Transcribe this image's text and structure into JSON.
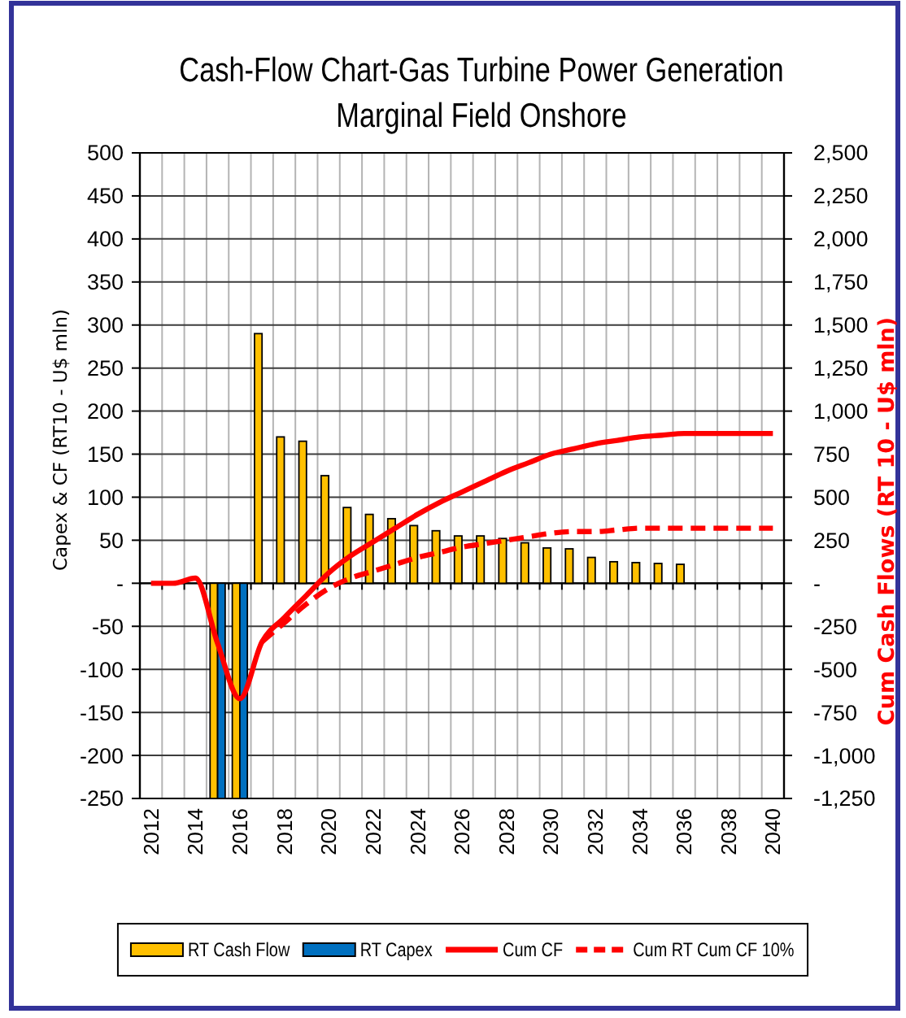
{
  "chart_data": {
    "type": "bar",
    "title": "Cash-Flow Chart-Gas Turbine Power Generation",
    "subtitle": "Marginal Field Onshore",
    "ylabel": "Capex & CF (RT10 - U$ mln)",
    "y2label": "Cum Cash Flows (RT 10 - U$ mln)",
    "categories": [
      "2012",
      null,
      "2014",
      null,
      "2016",
      null,
      "2018",
      null,
      "2020",
      null,
      "2022",
      null,
      "2024",
      null,
      "2026",
      null,
      "2028",
      null,
      "2030",
      null,
      "2032",
      null,
      "2034",
      null,
      "2036",
      null,
      "2038",
      null,
      "2040"
    ],
    "series": [
      {
        "name": "RT Cash Flow",
        "color": "#ffc000",
        "values": [
          null,
          null,
          null,
          -250,
          -250,
          290,
          170,
          165,
          125,
          88,
          80,
          75,
          67,
          61,
          55,
          55,
          52,
          47,
          41,
          40,
          30,
          25,
          24,
          23,
          22,
          null,
          null,
          null,
          null
        ]
      },
      {
        "name": "RT Capex",
        "color": "#0070c0",
        "values": [
          null,
          null,
          null,
          -250,
          -250,
          null,
          null,
          null,
          null,
          null,
          null,
          null,
          null,
          null,
          null,
          null,
          null,
          null,
          null,
          null,
          null,
          null,
          null,
          null,
          null,
          null,
          null,
          null,
          null
        ]
      },
      {
        "name": "Cum CF",
        "type": "line",
        "axis": "y2",
        "color": "#ff0000",
        "line_style": "solid",
        "values": [
          0,
          0,
          30,
          -350,
          -670,
          -340,
          -200,
          -70,
          60,
          160,
          240,
          320,
          400,
          470,
          530,
          590,
          650,
          700,
          750,
          780,
          810,
          830,
          850,
          860,
          870,
          870,
          870,
          870,
          870
        ]
      },
      {
        "name": "Cum RT Cum CF 10%",
        "type": "line",
        "axis": "y2",
        "color": "#ff0000",
        "line_style": "dashed",
        "values": [
          null,
          null,
          null,
          null,
          null,
          -340,
          -230,
          -120,
          -30,
          30,
          70,
          110,
          150,
          180,
          210,
          230,
          250,
          270,
          290,
          300,
          300,
          310,
          320,
          320,
          320,
          320,
          320,
          320,
          320
        ]
      }
    ],
    "ylim": [
      -250,
      500
    ],
    "yticks": [
      -250,
      -200,
      -150,
      -100,
      -50,
      {
        "value": 0,
        "label": "-"
      },
      50,
      100,
      150,
      200,
      250,
      300,
      350,
      400,
      450,
      500
    ],
    "y2lim": [
      -1250,
      2500
    ],
    "y2ticks": [
      {
        "value": -1250,
        "label": "-1,250"
      },
      {
        "value": -1000,
        "label": "-1,000"
      },
      -750,
      -500,
      -250,
      {
        "value": 0,
        "label": "-"
      },
      250,
      500,
      750,
      {
        "value": 1000,
        "label": "1,000"
      },
      {
        "value": 1250,
        "label": "1,250"
      },
      {
        "value": 1500,
        "label": "1,500"
      },
      {
        "value": 1750,
        "label": "1,750"
      },
      {
        "value": 2000,
        "label": "2,000"
      },
      {
        "value": 2250,
        "label": "2,250"
      },
      {
        "value": 2500,
        "label": "2,500"
      }
    ],
    "grid": true,
    "legend": "bottom"
  }
}
